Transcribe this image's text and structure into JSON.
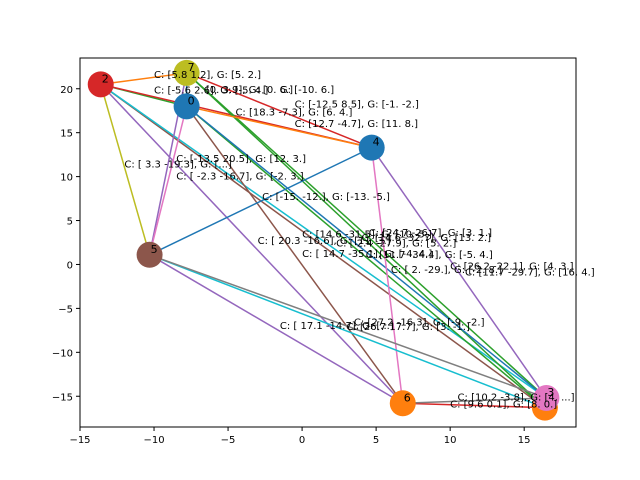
{
  "chart_data": {
    "type": "scatter",
    "title": "",
    "xlabel": "",
    "ylabel": "",
    "xlim": [
      -15,
      18.5
    ],
    "ylim": [
      -18.5,
      23.5
    ],
    "xticks": [
      -15,
      -10,
      -5,
      0,
      5,
      10,
      15
    ],
    "yticks": [
      -15,
      -10,
      -5,
      0,
      5,
      10,
      15,
      20
    ],
    "grid": false,
    "nodes": [
      {
        "id": "0",
        "x": -7.8,
        "y": 18.0,
        "color": "#1f77b4"
      },
      {
        "id": "1",
        "x": 16.4,
        "y": -16.3,
        "color": "#ff7f0e"
      },
      {
        "id": "2",
        "x": -13.6,
        "y": 20.5,
        "color": "#d62728"
      },
      {
        "id": "3",
        "x": 16.5,
        "y": -15.2,
        "color": "#e377c2"
      },
      {
        "id": "4",
        "x": 4.7,
        "y": 13.3,
        "color": "#1f77b4"
      },
      {
        "id": "5",
        "x": -10.3,
        "y": 1.1,
        "color": "#8c564b"
      },
      {
        "id": "6",
        "x": 6.8,
        "y": -15.8,
        "color": "#ff7f0e"
      },
      {
        "id": "7",
        "x": -7.8,
        "y": 21.8,
        "color": "#bcbd22"
      }
    ],
    "edges": [
      {
        "from": "2",
        "to": "7",
        "color": "#ff7f0e"
      },
      {
        "from": "2",
        "to": "0",
        "color": "#2ca02c"
      },
      {
        "from": "2",
        "to": "4",
        "color": "#d62728"
      },
      {
        "from": "2",
        "to": "5",
        "color": "#bcbd22"
      },
      {
        "from": "2",
        "to": "6",
        "color": "#9467bd"
      },
      {
        "from": "2",
        "to": "1",
        "color": "#8c564b"
      },
      {
        "from": "2",
        "to": "3",
        "color": "#17becf"
      },
      {
        "from": "7",
        "to": "0",
        "color": "#1f77b4"
      },
      {
        "from": "7",
        "to": "4",
        "color": "#d62728"
      },
      {
        "from": "7",
        "to": "5",
        "color": "#9467bd"
      },
      {
        "from": "7",
        "to": "1",
        "color": "#2ca02c"
      },
      {
        "from": "7",
        "to": "3",
        "color": "#2ca02c"
      },
      {
        "from": "0",
        "to": "4",
        "color": "#ff7f0e"
      },
      {
        "from": "0",
        "to": "5",
        "color": "#e377c2"
      },
      {
        "from": "0",
        "to": "6",
        "color": "#8c564b"
      },
      {
        "from": "0",
        "to": "1",
        "color": "#2ca02c"
      },
      {
        "from": "0",
        "to": "3",
        "color": "#1f77b4"
      },
      {
        "from": "4",
        "to": "5",
        "color": "#1f77b4"
      },
      {
        "from": "4",
        "to": "6",
        "color": "#e377c2"
      },
      {
        "from": "4",
        "to": "3",
        "color": "#9467bd"
      },
      {
        "from": "5",
        "to": "6",
        "color": "#9467bd"
      },
      {
        "from": "5",
        "to": "1",
        "color": "#17becf"
      },
      {
        "from": "5",
        "to": "3",
        "color": "#7f7f7f"
      },
      {
        "from": "6",
        "to": "1",
        "color": "#d62728"
      },
      {
        "from": "6",
        "to": "3",
        "color": "#7f7f7f"
      }
    ],
    "edge_labels": [
      {
        "text": "C: [5.8 1.2], G: [5. 2.]",
        "x": -10.0,
        "y": 21.7
      },
      {
        "text": "[0.   3.9], G: [0. 6.]",
        "x": -6.5,
        "y": 20.0
      },
      {
        "text": "G: [-10.  6.]",
        "x": -1.5,
        "y": 20.0
      },
      {
        "text": "C: [-5.6  2.6], G: [-5. 4.]",
        "x": -10.0,
        "y": 19.9
      },
      {
        "text": "C: [-12.5  8.5], G: [-1. -2.]",
        "x": -0.5,
        "y": 18.3
      },
      {
        "text": "C: [18.3  -7.3], G: [6. 4.]",
        "x": -4.5,
        "y": 17.4
      },
      {
        "text": "C: [12.7 -4.7], G: [11.  8.]",
        "x": -0.5,
        "y": 16.1
      },
      {
        "text": "C: [-13.5 20.5], G: [12.  3.]",
        "x": -8.5,
        "y": 12.1
      },
      {
        "text": "C: [  3.3 -19.3], G: [...]",
        "x": -12.0,
        "y": 11.5
      },
      {
        "text": "C: [ -2.3 -16.7], G: [-2.  3.]",
        "x": -8.5,
        "y": 10.1
      },
      {
        "text": "C: [-15. -12.], G: [-13.  -5.]",
        "x": -2.7,
        "y": 7.8
      },
      {
        "text": "C: [24.7 -26.7], G: [3. 1.]",
        "x": 4.5,
        "y": 3.7
      },
      {
        "text": "C: [14.6 -32.7], G: [13. 2.]",
        "x": 4.0,
        "y": 3.1
      },
      {
        "text": "C: [14.6 -31.5], G: [10. 5.]",
        "x": 0.0,
        "y": 3.5
      },
      {
        "text": "C: [ 20.3 -16.6], G: [11. 3.]",
        "x": -3.0,
        "y": 2.8
      },
      {
        "text": "C: [ 2.4 -27.9], G: [5. 2.]",
        "x": 2.3,
        "y": 2.5
      },
      {
        "text": "C: [ 14.7 -35.1], G: [-4. 4.]",
        "x": 0.0,
        "y": 1.3
      },
      {
        "text": "C: [11.7 -34.4], G: [-5.  4.]",
        "x": 4.3,
        "y": 1.2
      },
      {
        "text": "C: [ 2. -29.], G: [-2. 8.]",
        "x": 6.0,
        "y": -0.5
      },
      {
        "text": "C: [26.2 -22.1], G: [4. 3.]",
        "x": 10.0,
        "y": -0.1
      },
      {
        "text": "C: [11.7 -29.7], G: [16. 4.]",
        "x": 11.0,
        "y": -0.8
      },
      {
        "text": "C: [27.2 -16.3], G: [-9. -2.]",
        "x": 3.5,
        "y": -6.5
      },
      {
        "text": "C: [ 17.1 -14.7], G: [...]",
        "x": -1.5,
        "y": -6.9
      },
      {
        "text": "C: [26.7 17.7], G: [3. -1.]",
        "x": 3.0,
        "y": -7.0
      },
      {
        "text": "C: [10.2 -3.8], G: [4. ...]",
        "x": 10.5,
        "y": -15.0
      },
      {
        "text": "C: [9.6 0.1], G: [8. 0.]",
        "x": 10.0,
        "y": -15.8
      }
    ]
  }
}
